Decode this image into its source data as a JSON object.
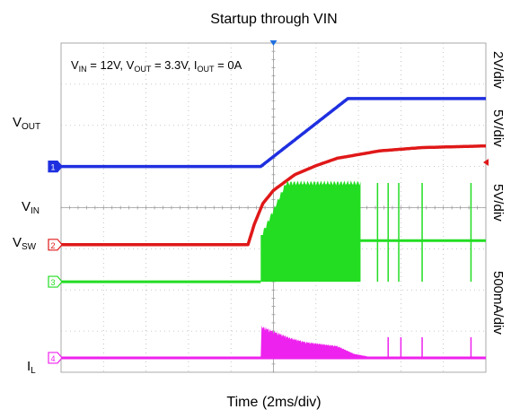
{
  "chart_data": {
    "type": "line",
    "title": "Startup through VIN",
    "xlabel": "Time (2ms/div)",
    "annotation": {
      "parts": [
        {
          "t": "V",
          "sub": "IN"
        },
        {
          "t": " = 12V, V"
        },
        {
          "sub": "OUT"
        },
        {
          "t": " = 3.3V, I"
        },
        {
          "sub": "OUT"
        },
        {
          "t": " = 0A"
        }
      ]
    },
    "x_range_ms": [
      -10,
      10
    ],
    "x_divisions": 10,
    "y_divisions": 8,
    "grid": true,
    "series": [
      {
        "name": "VOUT",
        "label_main": "V",
        "label_sub": "OUT",
        "channel": "1",
        "color": "#1f2fe0",
        "scale_label": "2V/div",
        "ground_div": 5.0,
        "x_ms": [
          -10,
          -0.6,
          3.5,
          4.5,
          10
        ],
        "values": [
          0,
          0,
          3.3,
          3.3,
          3.3
        ]
      },
      {
        "name": "VIN",
        "label_main": "V",
        "label_sub": "IN",
        "channel": "2",
        "color": "#e01818",
        "scale_label": "5V/div",
        "ground_div": 3.1,
        "x_ms": [
          -10,
          -1.2,
          -0.9,
          -0.5,
          0,
          1,
          2,
          3,
          5,
          7,
          10
        ],
        "values": [
          0,
          0,
          2.5,
          5.0,
          6.6,
          8.5,
          9.6,
          10.5,
          11.4,
          11.8,
          12
        ]
      },
      {
        "name": "VSW",
        "label_main": "V",
        "label_sub": "SW",
        "channel": "3",
        "color": "#22dd22",
        "scale_label": "5V/div",
        "ground_div": 2.2,
        "x_ms": [
          -10,
          -0.6,
          -0.6,
          4.1,
          4.1,
          10
        ],
        "values": [
          0,
          0,
          12,
          12,
          5,
          5
        ],
        "note": "switching burst fills 0 to envelope between -0.6ms and 4.1ms; sparse spikes after"
      },
      {
        "name": "IL",
        "label_main": "I",
        "label_sub": "L",
        "channel": "4",
        "color": "#ee22ee",
        "scale_label": "500mA/div",
        "ground_div": 0.35,
        "x_ms": [
          -10,
          -0.6,
          -0.6,
          0.8,
          1.5,
          3.0,
          3.8,
          4.4,
          4.5,
          10
        ],
        "values": [
          0,
          0,
          0.4,
          0.25,
          0.2,
          0.15,
          0.05,
          0.02,
          0,
          0
        ],
        "units": "A"
      }
    ]
  }
}
